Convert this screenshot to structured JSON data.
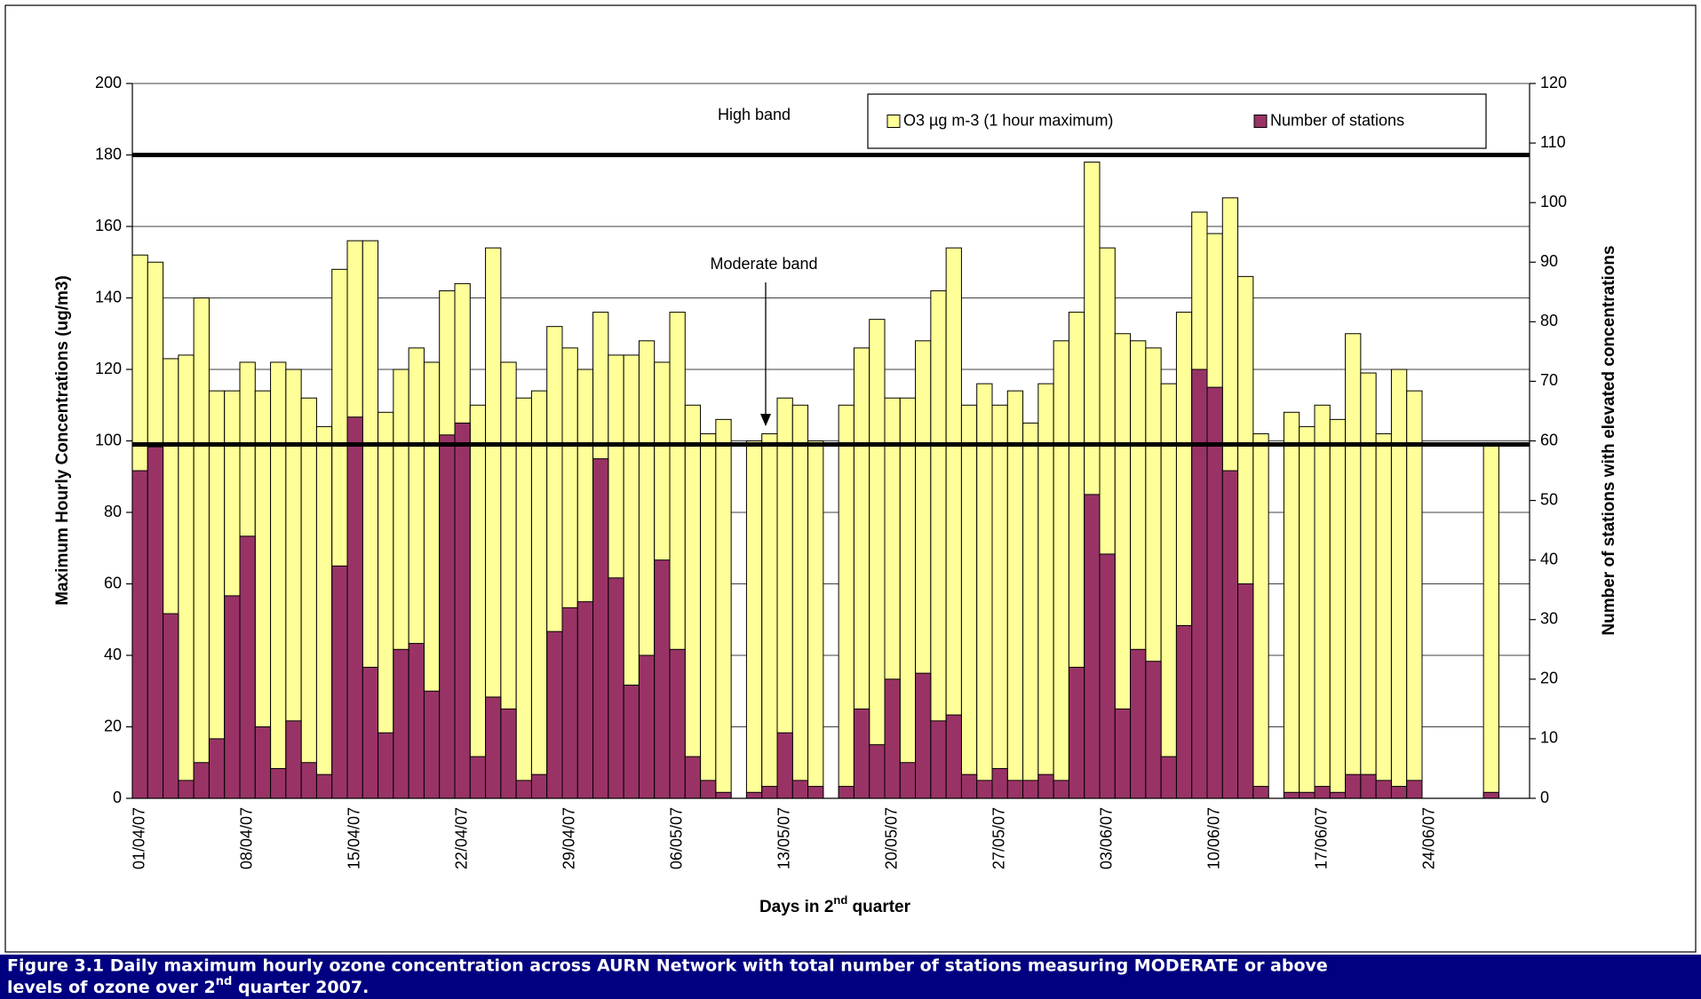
{
  "chart_data": {
    "type": "bar",
    "y_label": "Maximum Hourly Concentrations (ug/m3)",
    "y2_label": "Number of stations with elevated concentrations",
    "x_label": [
      "Days in 2",
      "nd",
      " quarter"
    ],
    "annotations": [
      "High band",
      "Moderate band"
    ],
    "hlines": [
      180,
      99
    ],
    "legend": "upper right",
    "grid": true,
    "ylim": [
      0,
      200
    ],
    "yticks": [
      0,
      20,
      40,
      60,
      80,
      100,
      120,
      140,
      160,
      180,
      200
    ],
    "y2lim": [
      0,
      120
    ],
    "y2ticks": [
      0,
      10,
      20,
      30,
      40,
      50,
      60,
      70,
      80,
      90,
      100,
      110,
      120
    ],
    "categories": [
      "01/04/07",
      null,
      null,
      null,
      null,
      null,
      null,
      "08/04/07",
      null,
      null,
      null,
      null,
      null,
      null,
      "15/04/07",
      null,
      null,
      null,
      null,
      null,
      null,
      "22/04/07",
      null,
      null,
      null,
      null,
      null,
      null,
      "29/04/07",
      null,
      null,
      null,
      null,
      null,
      null,
      "06/05/07",
      null,
      null,
      null,
      null,
      null,
      null,
      "13/05/07",
      null,
      null,
      null,
      null,
      null,
      null,
      "20/05/07",
      null,
      null,
      null,
      null,
      null,
      null,
      "27/05/07",
      null,
      null,
      null,
      null,
      null,
      null,
      "03/06/07",
      null,
      null,
      null,
      null,
      null,
      null,
      "10/06/07",
      null,
      null,
      null,
      null,
      null,
      null,
      "17/06/07",
      null,
      null,
      null,
      null,
      null,
      null,
      "24/06/07",
      null,
      null,
      null,
      null,
      null,
      null
    ],
    "series": [
      {
        "name": "O3 µg m-3 (1 hour maximum)",
        "color": "#ffff99",
        "values": [
          152,
          150,
          123,
          124,
          140,
          114,
          114,
          122,
          114,
          122,
          120,
          112,
          104,
          148,
          156,
          156,
          108,
          120,
          126,
          122,
          142,
          144,
          110,
          154,
          122,
          112,
          114,
          132,
          126,
          120,
          136,
          124,
          124,
          128,
          122,
          136,
          110,
          102,
          106,
          null,
          100,
          102,
          112,
          110,
          100,
          null,
          110,
          126,
          134,
          112,
          112,
          128,
          142,
          154,
          110,
          116,
          110,
          114,
          105,
          116,
          128,
          136,
          178,
          154,
          130,
          128,
          126,
          116,
          136,
          164,
          158,
          168,
          146,
          102,
          null,
          108,
          104,
          110,
          106,
          130,
          119,
          102,
          120,
          114,
          null,
          null,
          null,
          null,
          99,
          null,
          null
        ]
      },
      {
        "name": "Number of stations",
        "color": "#993366",
        "axis": "y2",
        "values": [
          55,
          59,
          31,
          3,
          6,
          10,
          34,
          44,
          12,
          5,
          13,
          6,
          4,
          39,
          64,
          22,
          11,
          25,
          26,
          18,
          61,
          63,
          7,
          17,
          15,
          3,
          4,
          28,
          32,
          33,
          57,
          37,
          19,
          24,
          40,
          25,
          7,
          3,
          1,
          null,
          1,
          2,
          11,
          3,
          2,
          null,
          2,
          15,
          9,
          20,
          6,
          21,
          13,
          14,
          4,
          3,
          5,
          3,
          3,
          4,
          3,
          22,
          51,
          41,
          15,
          25,
          23,
          7,
          29,
          72,
          69,
          55,
          36,
          2,
          null,
          1,
          1,
          2,
          1,
          4,
          4,
          3,
          2,
          3,
          null,
          null,
          null,
          null,
          1,
          null,
          null
        ]
      }
    ]
  },
  "caption": [
    "Figure 3.1 Daily maximum hourly ozone concentration across AURN Network with total number of stations measuring MODERATE or above",
    "levels of ozone over 2",
    "nd",
    " quarter 2007."
  ]
}
